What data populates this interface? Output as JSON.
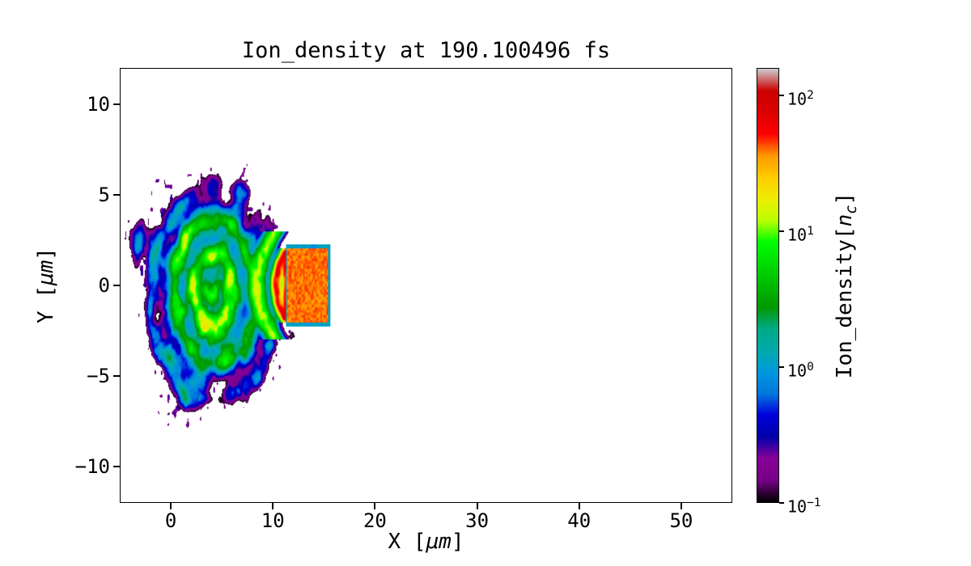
{
  "chart_data": {
    "type": "heatmap",
    "title": "Ion_density at 190.100496 fs",
    "time_fs": 190.100496,
    "xlabel": {
      "prefix": "X [",
      "unit": "μm",
      "suffix": "]"
    },
    "ylabel": {
      "prefix": "Y [",
      "unit": "μm",
      "suffix": "]"
    },
    "xlim": [
      -5,
      55
    ],
    "ylim": [
      -12,
      12
    ],
    "xticks": {
      "values": [
        0,
        10,
        20,
        30,
        40,
        50
      ],
      "labels": [
        "0",
        "10",
        "20",
        "30",
        "40",
        "50"
      ]
    },
    "yticks": {
      "values": [
        10,
        5,
        0,
        -5,
        -10
      ],
      "labels": [
        "10",
        "5",
        "0",
        "−5",
        "−10"
      ]
    },
    "grid": false,
    "colorbar": {
      "label": {
        "prefix": "Ion_density[",
        "var": "n",
        "sub": "c",
        "suffix": "]"
      },
      "scale": "log",
      "vmin": 0.1,
      "vmax": 158.5,
      "ticks": [
        {
          "value": 100,
          "base": "10",
          "exp": "2"
        },
        {
          "value": 10,
          "base": "10",
          "exp": "1"
        },
        {
          "value": 1,
          "base": "10",
          "exp": "0"
        },
        {
          "value": 0.1,
          "base": "10",
          "exp": "−1"
        }
      ]
    },
    "colormap": {
      "name": "nipy_spectral",
      "stops": [
        [
          0.0,
          0.0,
          0.0
        ],
        [
          0.4667,
          0.0,
          0.5333
        ],
        [
          0.5333,
          0.0,
          0.6
        ],
        [
          0.0,
          0.0,
          0.6667
        ],
        [
          0.0,
          0.0,
          0.8667
        ],
        [
          0.0,
          0.4667,
          0.8667
        ],
        [
          0.0,
          0.6,
          0.8667
        ],
        [
          0.0,
          0.6667,
          0.6667
        ],
        [
          0.0,
          0.6667,
          0.5333
        ],
        [
          0.0,
          0.6,
          0.0
        ],
        [
          0.0,
          0.7333,
          0.0
        ],
        [
          0.0,
          0.8667,
          0.0
        ],
        [
          0.0,
          1.0,
          0.0
        ],
        [
          0.7333,
          1.0,
          0.0
        ],
        [
          0.9333,
          0.9333,
          0.0
        ],
        [
          1.0,
          0.8,
          0.0
        ],
        [
          1.0,
          0.6,
          0.0
        ],
        [
          1.0,
          0.0,
          0.0
        ],
        [
          0.8667,
          0.0,
          0.0
        ],
        [
          0.8,
          0.0,
          0.0
        ],
        [
          0.8,
          0.8,
          0.8
        ]
      ]
    },
    "field": {
      "description": "Laser-plasma PIC snapshot: solid target slab (density ~40 nc, x 11.3-15.4 um, |y|<2 um) with a turbulent expanding plasma plume to the left (x ~ -4 to 11 um, y ~ -7 to 6 um, densities ~0.1-60 nc), a bright red curved density front just ahead of the target face, and sparse low-density (~0.1-0.5 nc) purple speckles around the plume fringe. Background is vacuum (masked white).",
      "target": {
        "x0": 11.3,
        "x1": 15.4,
        "y0": -2.05,
        "y1": 2.05,
        "density": 40,
        "rim": 0.22,
        "rim_density": 1.1
      },
      "plume": {
        "cx": 4.2,
        "cy": -0.4,
        "rx": 6.6,
        "ry": 5.2,
        "amp": 5,
        "pow": 3,
        "k": 2.2,
        "contrast": 2.2,
        "fscale": 0.75,
        "ringfreq": 3.0,
        "ringwarp": 4.0,
        "mix_noise": 0.62,
        "mix_ring": 0.38,
        "spike": 0.32,
        "cut": 0.1,
        "fringe_min": 0.004,
        "speckthr": 0.66,
        "speckslope": 0.22
      },
      "arcs": [
        {
          "x": 10.3,
          "curv": 0.25,
          "halfheight": 2.05,
          "sigma": 0.25,
          "density": 60
        },
        {
          "x": 8.4,
          "curv": 0.2,
          "halfheight": 3.0,
          "sigma": 0.45,
          "density": 10
        },
        {
          "x": 11.15,
          "curv": 0.02,
          "halfheight": 1.9,
          "sigma": 0.15,
          "density": 50
        }
      ]
    }
  }
}
